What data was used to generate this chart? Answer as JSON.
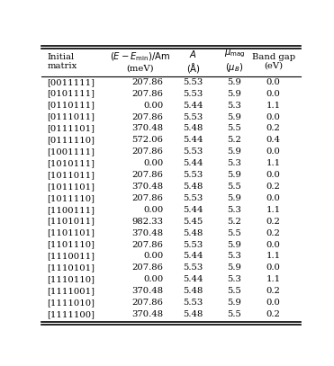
{
  "rows": [
    [
      "[0011111]",
      "207.86",
      "5.53",
      "5.9",
      "0.0"
    ],
    [
      "[0101111]",
      "207.86",
      "5.53",
      "5.9",
      "0.0"
    ],
    [
      "[0110111]",
      "0.00",
      "5.44",
      "5.3",
      "1.1"
    ],
    [
      "[0111011]",
      "207.86",
      "5.53",
      "5.9",
      "0.0"
    ],
    [
      "[0111101]",
      "370.48",
      "5.48",
      "5.5",
      "0.2"
    ],
    [
      "[0111110]",
      "572.06",
      "5.44",
      "5.2",
      "0.4"
    ],
    [
      "[1001111]",
      "207.86",
      "5.53",
      "5.9",
      "0.0"
    ],
    [
      "[1010111]",
      "0.00",
      "5.44",
      "5.3",
      "1.1"
    ],
    [
      "[1011011]",
      "207.86",
      "5.53",
      "5.9",
      "0.0"
    ],
    [
      "[1011101]",
      "370.48",
      "5.48",
      "5.5",
      "0.2"
    ],
    [
      "[1011110]",
      "207.86",
      "5.53",
      "5.9",
      "0.0"
    ],
    [
      "[1100111]",
      "0.00",
      "5.44",
      "5.3",
      "1.1"
    ],
    [
      "[1101011]",
      "982.33",
      "5.45",
      "5.2",
      "0.2"
    ],
    [
      "[1101101]",
      "370.48",
      "5.48",
      "5.5",
      "0.2"
    ],
    [
      "[1101110]",
      "207.86",
      "5.53",
      "5.9",
      "0.0"
    ],
    [
      "[1110011]",
      "0.00",
      "5.44",
      "5.3",
      "1.1"
    ],
    [
      "[1110101]",
      "207.86",
      "5.53",
      "5.9",
      "0.0"
    ],
    [
      "[1110110]",
      "0.00",
      "5.44",
      "5.3",
      "1.1"
    ],
    [
      "[1111001]",
      "370.48",
      "5.48",
      "5.5",
      "0.2"
    ],
    [
      "[1111010]",
      "207.86",
      "5.53",
      "5.9",
      "0.0"
    ],
    [
      "[1111100]",
      "370.48",
      "5.48",
      "5.5",
      "0.2"
    ]
  ],
  "text_color": "#000000",
  "font_size": 7.2,
  "header_font_size": 7.2,
  "fig_width": 3.71,
  "fig_height": 4.07,
  "dpi": 100
}
